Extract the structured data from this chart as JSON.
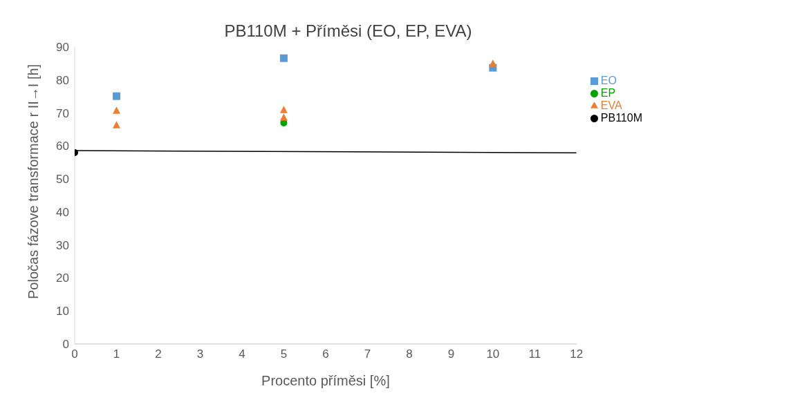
{
  "chart_data": {
    "type": "scatter",
    "title": "PB110M + Příměsi (EO, EP, EVA)",
    "xlabel": "Procento příměsi [%]",
    "ylabel": "Poločas fázove transformace r II→I [h]",
    "xlim": [
      0,
      12
    ],
    "xticks": [
      0,
      1,
      2,
      3,
      4,
      5,
      6,
      7,
      8,
      9,
      10,
      11,
      12
    ],
    "ylim": [
      0,
      90
    ],
    "yticks": [
      0,
      10,
      20,
      30,
      40,
      50,
      60,
      70,
      80,
      90
    ],
    "grid": false,
    "legend": "right",
    "series": [
      {
        "name": "EO",
        "color": "#5b9bd5",
        "marker": "square",
        "x": [
          1,
          5,
          10
        ],
        "values": [
          75.1,
          86.6,
          83.7
        ]
      },
      {
        "name": "EP",
        "color": "#00a300",
        "marker": "circle",
        "x": [
          5
        ],
        "values": [
          67
        ]
      },
      {
        "name": "EVA",
        "color": "#ed7d31",
        "marker": "triangle",
        "x": [
          1,
          1,
          5,
          5,
          10
        ],
        "values": [
          70.7,
          66.3,
          70.9,
          68.6,
          84.9
        ]
      },
      {
        "name": "PB110M",
        "color": "#000000",
        "marker": "circle",
        "x": [
          0
        ],
        "values": [
          58
        ]
      },
      {
        "type": "line",
        "color": "#000000",
        "marker": "none",
        "line_style": "solid",
        "x": [
          0,
          12
        ],
        "values": [
          58.6,
          57.9
        ]
      }
    ]
  }
}
